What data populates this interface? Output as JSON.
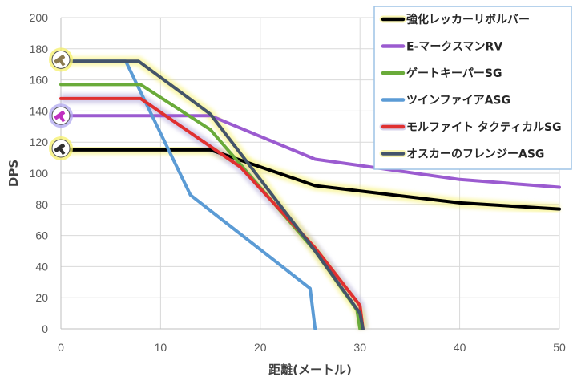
{
  "chart_data": {
    "type": "line",
    "title": "",
    "xlabel": "距離(メートル)",
    "ylabel": "DPS",
    "xlim": [
      0,
      50
    ],
    "ylim": [
      0,
      200
    ],
    "x_ticks": [
      0,
      10,
      20,
      30,
      40,
      50
    ],
    "y_ticks": [
      0,
      20,
      40,
      60,
      80,
      100,
      120,
      140,
      160,
      180,
      200
    ],
    "x_tick_labels": [
      "0",
      "10",
      "20",
      "30",
      "40",
      "50"
    ],
    "y_tick_labels": [
      "0",
      "20",
      "40",
      "60",
      "80",
      "100",
      "120",
      "140",
      "160",
      "180",
      "200"
    ],
    "grid": true,
    "legend_position": "top-right",
    "series": [
      {
        "name": "強化レッカーリボルバー",
        "color": "#000000",
        "glow": "#f5f06a",
        "points": [
          [
            0,
            115
          ],
          [
            15,
            115
          ],
          [
            25.5,
            92
          ],
          [
            40,
            81
          ],
          [
            50,
            77
          ]
        ]
      },
      {
        "name": "E-マークスマンRV",
        "color": "#9b5bd0",
        "glow": null,
        "points": [
          [
            0,
            137
          ],
          [
            15,
            137
          ],
          [
            25.5,
            109
          ],
          [
            40,
            96
          ],
          [
            50,
            91
          ]
        ]
      },
      {
        "name": "ゲートキーパーSG",
        "color": "#6aab3a",
        "glow": null,
        "points": [
          [
            0,
            157
          ],
          [
            8,
            157
          ],
          [
            15,
            128
          ],
          [
            25.5,
            50
          ],
          [
            29.7,
            12
          ],
          [
            30,
            0
          ]
        ]
      },
      {
        "name": "ツインファイアASG",
        "color": "#5b9bd5",
        "glow": null,
        "points": [
          [
            0,
            172
          ],
          [
            6.5,
            172
          ],
          [
            13,
            86
          ],
          [
            25,
            26
          ],
          [
            25.5,
            0
          ]
        ]
      },
      {
        "name": "モルファイト タクティカルSG",
        "color": "#e03030",
        "glow": "#b0a8d8",
        "points": [
          [
            0,
            148
          ],
          [
            8,
            148
          ],
          [
            18,
            104
          ],
          [
            25.5,
            52
          ],
          [
            30,
            15
          ],
          [
            30.3,
            0
          ]
        ]
      },
      {
        "name": "オスカーのフレンジーASG",
        "color": "#44546a",
        "glow": "#f5f06a",
        "points": [
          [
            0,
            172
          ],
          [
            7.8,
            172
          ],
          [
            15,
            138
          ],
          [
            25.5,
            50
          ],
          [
            30,
            10
          ],
          [
            30.3,
            0
          ]
        ]
      }
    ]
  },
  "icons": [
    {
      "name": "shotgun-badge-icon",
      "series": "オスカーのフレンジーASG",
      "y": 173,
      "ring": "#f5f06a"
    },
    {
      "name": "purple-gun-badge-icon",
      "series": "E-マークスマンRV",
      "y": 137,
      "ring": "#b0a8f0"
    },
    {
      "name": "revolver-badge-icon",
      "series": "強化レッカーリボルバー",
      "y": 116,
      "ring": "#f5f06a"
    }
  ]
}
